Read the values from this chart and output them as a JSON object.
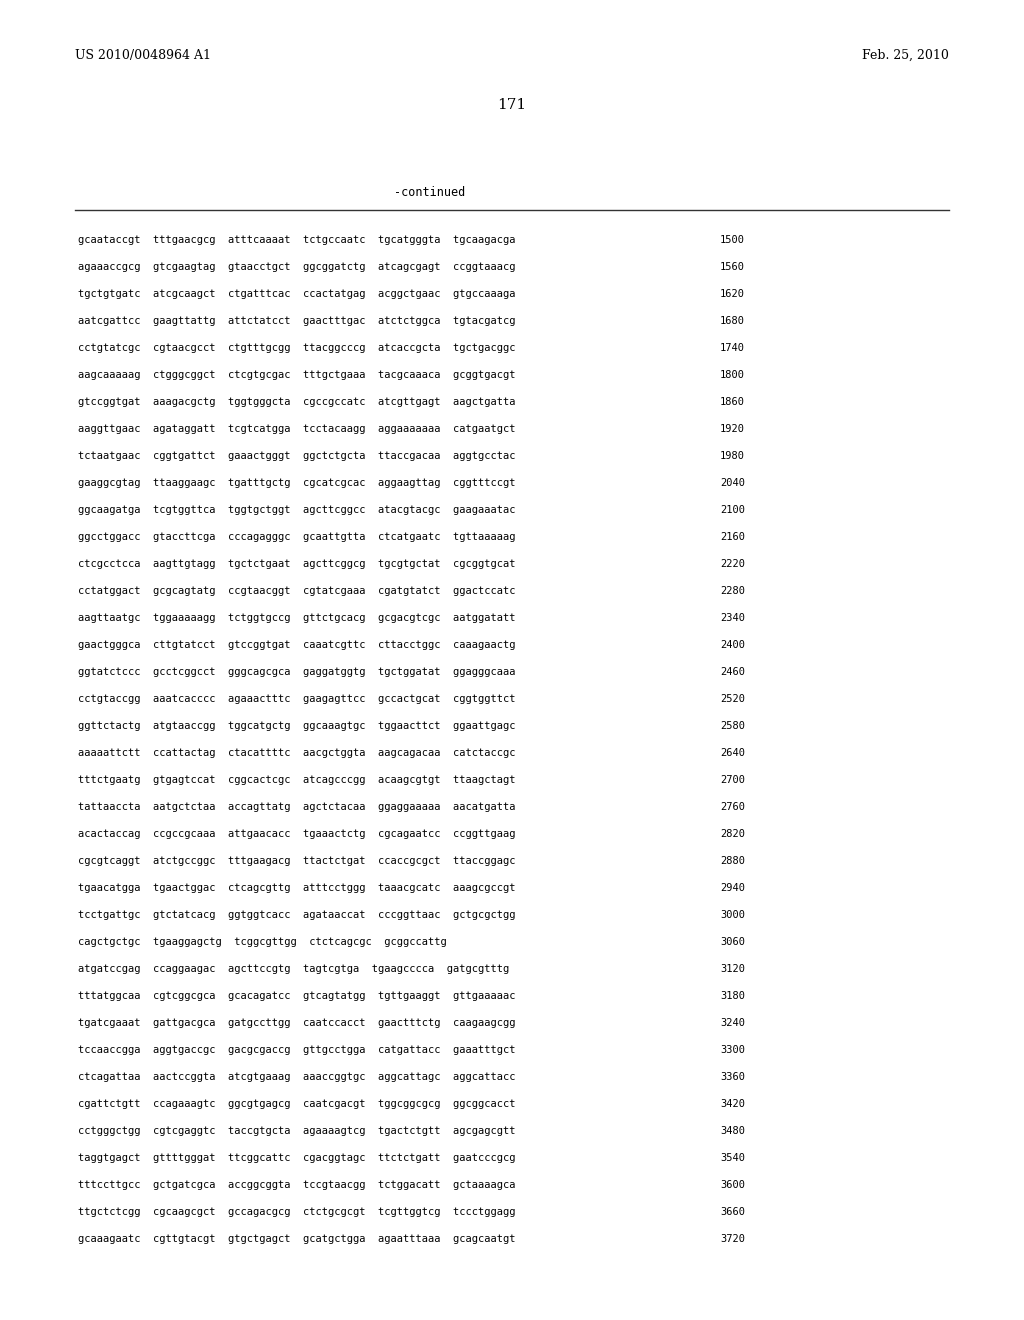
{
  "header_left": "US 2010/0048964 A1",
  "header_right": "Feb. 25, 2010",
  "page_number": "171",
  "continued_label": "-continued",
  "background_color": "#ffffff",
  "text_color": "#000000",
  "font_size_header": 9.0,
  "font_size_page": 11.0,
  "font_size_continued": 8.5,
  "font_size_sequence": 7.5,
  "sequence_lines": [
    [
      "gcaataccgt  tttgaacgcg  atttcaaaat  tctgccaatc  tgcatgggta  tgcaagacga",
      "1500"
    ],
    [
      "agaaaccgcg  gtcgaagtag  gtaacctgct  ggcggatctg  atcagcgagt  ccggtaaacg",
      "1560"
    ],
    [
      "tgctgtgatc  atcgcaagct  ctgatttcac  ccactatgag  acggctgaac  gtgccaaaga",
      "1620"
    ],
    [
      "aatcgattcc  gaagttattg  attctatcct  gaactttgac  atctctggca  tgtacgatcg",
      "1680"
    ],
    [
      "cctgtatcgc  cgtaacgcct  ctgtttgcgg  ttacggcccg  atcaccgcta  tgctgacggc",
      "1740"
    ],
    [
      "aagcaaaaag  ctgggcggct  ctcgtgcgac  tttgctgaaa  tacgcaaaca  gcggtgacgt",
      "1800"
    ],
    [
      "gtccggtgat  aaagacgctg  tggtgggcta  cgccgccatc  atcgttgagt  aagctgatta",
      "1860"
    ],
    [
      "aaggttgaac  agataggatt  tcgtcatgga  tcctacaagg  aggaaaaaaa  catgaatgct",
      "1920"
    ],
    [
      "tctaatgaac  cggtgattct  gaaactgggt  ggctctgcta  ttaccgacaa  aggtgcctac",
      "1980"
    ],
    [
      "gaaggcgtag  ttaaggaagc  tgatttgctg  cgcatcgcac  aggaagttag  cggtttccgt",
      "2040"
    ],
    [
      "ggcaagatga  tcgtggttca  tggtgctggt  agcttcggcc  atacgtacgc  gaagaaatac",
      "2100"
    ],
    [
      "ggcctggacc  gtaccttcga  cccagagggc  gcaattgtta  ctcatgaatc  tgttaaaaag",
      "2160"
    ],
    [
      "ctcgcctcca  aagttgtagg  tgctctgaat  agcttcggcg  tgcgtgctat  cgcggtgcat",
      "2220"
    ],
    [
      "cctatggact  gcgcagtatg  ccgtaacggt  cgtatcgaaa  cgatgtatct  ggactccatc",
      "2280"
    ],
    [
      "aagttaatgc  tggaaaaagg  tctggtgccg  gttctgcacg  gcgacgtcgc  aatggatatt",
      "2340"
    ],
    [
      "gaactgggca  cttgtatcct  gtccggtgat  caaatcgttc  cttacctggc  caaagaactg",
      "2400"
    ],
    [
      "ggtatctccc  gcctcggcct  gggcagcgca  gaggatggtg  tgctggatat  ggagggcaaa",
      "2460"
    ],
    [
      "cctgtaccgg  aaatcacccc  agaaactttc  gaagagttcc  gccactgcat  cggtggttct",
      "2520"
    ],
    [
      "ggttctactg  atgtaaccgg  tggcatgctg  ggcaaagtgc  tggaacttct  ggaattgagc",
      "2580"
    ],
    [
      "aaaaattctt  ccattactag  ctacattttc  aacgctggta  aagcagacaa  catctaccgc",
      "2640"
    ],
    [
      "tttctgaatg  gtgagtccat  cggcactcgc  atcagcccgg  acaagcgtgt  ttaagctagt",
      "2700"
    ],
    [
      "tattaaccta  aatgctctaa  accagttatg  agctctacaa  ggaggaaaaa  aacatgatta",
      "2760"
    ],
    [
      "acactaccag  ccgccgcaaa  attgaacacc  tgaaactctg  cgcagaatcc  ccggttgaag",
      "2820"
    ],
    [
      "cgcgtcaggt  atctgccggc  tttgaagacg  ttactctgat  ccaccgcgct  ttaccggagc",
      "2880"
    ],
    [
      "tgaacatgga  tgaactggac  ctcagcgttg  atttcctggg  taaacgcatc  aaagcgccgt",
      "2940"
    ],
    [
      "tcctgattgc  gtctatcacg  ggtggtcacc  agataaccat  cccggttaac  gctgcgctgg",
      "3000"
    ],
    [
      "cagctgctgc  tgaaggagctg  tcggcgttgg  ctctcagcgc  gcggccattg",
      "3060"
    ],
    [
      "atgatccgag  ccaggaagac  agcttccgtg  tagtcgtga  tgaagcccca  gatgcgtttg",
      "3120"
    ],
    [
      "tttatggcaa  cgtcggcgca  gcacagatcc  gtcagtatgg  tgttgaaggt  gttgaaaaac",
      "3180"
    ],
    [
      "tgatcgaaat  gattgacgca  gatgccttgg  caatccacct  gaactttctg  caagaagcgg",
      "3240"
    ],
    [
      "tccaaccgga  aggtgaccgc  gacgcgaccg  gttgcctgga  catgattacc  gaaatttgct",
      "3300"
    ],
    [
      "ctcagattaa  aactccggta  atcgtgaaag  aaaccggtgc  aggcattagc  aggcattacc",
      "3360"
    ],
    [
      "cgattctgtt  ccagaaagtc  ggcgtgagcg  caatcgacgt  tggcggcgcg  ggcggcacct",
      "3420"
    ],
    [
      "cctgggctgg  cgtcgaggtc  taccgtgcta  agaaaagtcg  tgactctgtt  agcgagcgtt",
      "3480"
    ],
    [
      "taggtgagct  gttttgggat  ttcggcattc  cgacggtagc  ttctctgatt  gaatcccgcg",
      "3540"
    ],
    [
      "tttccttgcc  gctgatcgca  accggcggta  tccgtaacgg  tctggacatt  gctaaaagca",
      "3600"
    ],
    [
      "ttgctctcgg  cgcaagcgct  gccagacgcg  ctctgcgcgt  tcgttggtcg  tccctggagg",
      "3660"
    ],
    [
      "gcaaagaatc  cgttgtacgt  gtgctgagct  gcatgctgga  agaatttaaa  gcagcaatgt",
      "3720"
    ]
  ]
}
